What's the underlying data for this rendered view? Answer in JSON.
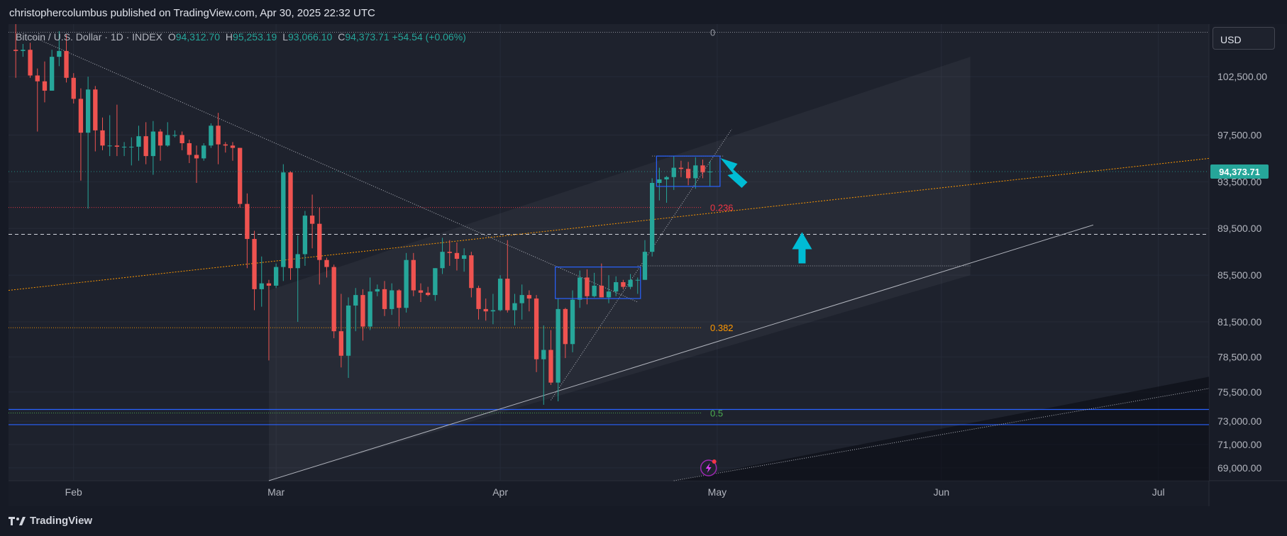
{
  "header": {
    "publisher_line": "christophercolumbus published on TradingView.com, Apr 30, 2025 22:32 UTC"
  },
  "legend": {
    "symbol": "Bitcoin / U.S. Dollar · 1D · INDEX",
    "open_label": "O",
    "open": "94,312.70",
    "high_label": "H",
    "high": "95,253.19",
    "low_label": "L",
    "low": "93,066.10",
    "close_label": "C",
    "close": "94,373.71",
    "change": "+54.54 (+0.06%)"
  },
  "currency_button": "USD",
  "last_price_badge": "94,373.71",
  "footer": {
    "brand": "TradingView"
  },
  "colors": {
    "background": "#1e222d",
    "up": "#26a69a",
    "down": "#ef5350",
    "accent": "#00bcd4",
    "fib_0236": "#f23645",
    "fib_0382": "#ff9800",
    "fib_05": "#4caf50",
    "box": "#2962ff"
  },
  "chart_data": {
    "type": "candlestick",
    "symbol": "BTCUSD",
    "interval": "1D",
    "ylim": [
      67900,
      107000
    ],
    "y_ticks": [
      {
        "value": 102500,
        "label": "102,500.00"
      },
      {
        "value": 97500,
        "label": "97,500.00"
      },
      {
        "value": 93500,
        "label": "93,500.00"
      },
      {
        "value": 89500,
        "label": "89,500.00"
      },
      {
        "value": 85500,
        "label": "85,500.00"
      },
      {
        "value": 81500,
        "label": "81,500.00"
      },
      {
        "value": 78500,
        "label": "78,500.00"
      },
      {
        "value": 75500,
        "label": "75,500.00"
      },
      {
        "value": 73000,
        "label": "73,000.00"
      },
      {
        "value": 71000,
        "label": "71,000.00"
      },
      {
        "value": 69000,
        "label": "69,000.00"
      }
    ],
    "x_ticks": [
      {
        "date": "2025-02-01",
        "label": "Feb"
      },
      {
        "date": "2025-03-01",
        "label": "Mar"
      },
      {
        "date": "2025-04-01",
        "label": "Apr"
      },
      {
        "date": "2025-05-01",
        "label": "May"
      },
      {
        "date": "2025-06-01",
        "label": "Jun"
      },
      {
        "date": "2025-07-01",
        "label": "Jul"
      }
    ],
    "x_range": [
      "2025-01-23",
      "2025-07-08"
    ],
    "candles": [
      {
        "d": "2025-01-24",
        "o": 104800,
        "h": 107000,
        "l": 102400,
        "c": 104700
      },
      {
        "d": "2025-01-25",
        "o": 104700,
        "h": 105300,
        "l": 104200,
        "c": 104800
      },
      {
        "d": "2025-01-26",
        "o": 104800,
        "h": 105400,
        "l": 102400,
        "c": 102600
      },
      {
        "d": "2025-01-27",
        "o": 102600,
        "h": 103200,
        "l": 97800,
        "c": 102100
      },
      {
        "d": "2025-01-28",
        "o": 102100,
        "h": 103800,
        "l": 100300,
        "c": 101300
      },
      {
        "d": "2025-01-29",
        "o": 101300,
        "h": 104800,
        "l": 101300,
        "c": 104200
      },
      {
        "d": "2025-01-30",
        "o": 104200,
        "h": 106400,
        "l": 103400,
        "c": 104700
      },
      {
        "d": "2025-01-31",
        "o": 104700,
        "h": 106100,
        "l": 102000,
        "c": 102400
      },
      {
        "d": "2025-02-01",
        "o": 102400,
        "h": 102800,
        "l": 100200,
        "c": 100600
      },
      {
        "d": "2025-02-02",
        "o": 100600,
        "h": 101500,
        "l": 93600,
        "c": 97700
      },
      {
        "d": "2025-02-03",
        "o": 97700,
        "h": 102500,
        "l": 91200,
        "c": 101400
      },
      {
        "d": "2025-02-04",
        "o": 101400,
        "h": 101700,
        "l": 96100,
        "c": 97900
      },
      {
        "d": "2025-02-05",
        "o": 97900,
        "h": 99000,
        "l": 96200,
        "c": 96600
      },
      {
        "d": "2025-02-06",
        "o": 96600,
        "h": 99200,
        "l": 95700,
        "c": 96600
      },
      {
        "d": "2025-02-07",
        "o": 96600,
        "h": 100100,
        "l": 95700,
        "c": 96500
      },
      {
        "d": "2025-02-08",
        "o": 96500,
        "h": 96900,
        "l": 95700,
        "c": 96500
      },
      {
        "d": "2025-02-09",
        "o": 96500,
        "h": 97300,
        "l": 94900,
        "c": 96500
      },
      {
        "d": "2025-02-10",
        "o": 96500,
        "h": 98300,
        "l": 95300,
        "c": 97400
      },
      {
        "d": "2025-02-11",
        "o": 97400,
        "h": 98600,
        "l": 95000,
        "c": 95700
      },
      {
        "d": "2025-02-12",
        "o": 95700,
        "h": 98700,
        "l": 94100,
        "c": 97800
      },
      {
        "d": "2025-02-13",
        "o": 97800,
        "h": 98000,
        "l": 95300,
        "c": 96600
      },
      {
        "d": "2025-02-14",
        "o": 96600,
        "h": 98600,
        "l": 96500,
        "c": 97500
      },
      {
        "d": "2025-02-15",
        "o": 97500,
        "h": 97900,
        "l": 97300,
        "c": 97500
      },
      {
        "d": "2025-02-16",
        "o": 97500,
        "h": 97800,
        "l": 96200,
        "c": 96800
      },
      {
        "d": "2025-02-17",
        "o": 96800,
        "h": 97100,
        "l": 95100,
        "c": 95800
      },
      {
        "d": "2025-02-18",
        "o": 95800,
        "h": 96600,
        "l": 93400,
        "c": 95500
      },
      {
        "d": "2025-02-19",
        "o": 95500,
        "h": 96800,
        "l": 95300,
        "c": 96600
      },
      {
        "d": "2025-02-20",
        "o": 96600,
        "h": 98500,
        "l": 96400,
        "c": 98300
      },
      {
        "d": "2025-02-21",
        "o": 98300,
        "h": 99400,
        "l": 95000,
        "c": 96700
      },
      {
        "d": "2025-02-22",
        "o": 96700,
        "h": 96900,
        "l": 96000,
        "c": 96600
      },
      {
        "d": "2025-02-23",
        "o": 96600,
        "h": 96900,
        "l": 95300,
        "c": 96400
      },
      {
        "d": "2025-02-24",
        "o": 96400,
        "h": 96400,
        "l": 91300,
        "c": 91600
      },
      {
        "d": "2025-02-25",
        "o": 91600,
        "h": 92500,
        "l": 86100,
        "c": 88600
      },
      {
        "d": "2025-02-26",
        "o": 88600,
        "h": 89300,
        "l": 82500,
        "c": 84300
      },
      {
        "d": "2025-02-27",
        "o": 84300,
        "h": 87100,
        "l": 82800,
        "c": 84800
      },
      {
        "d": "2025-02-28",
        "o": 84800,
        "h": 85100,
        "l": 78200,
        "c": 84600
      },
      {
        "d": "2025-03-01",
        "o": 84600,
        "h": 86500,
        "l": 84400,
        "c": 86200
      },
      {
        "d": "2025-03-02",
        "o": 86200,
        "h": 95000,
        "l": 85000,
        "c": 94300
      },
      {
        "d": "2025-03-03",
        "o": 94300,
        "h": 94400,
        "l": 85100,
        "c": 86100
      },
      {
        "d": "2025-03-04",
        "o": 86100,
        "h": 88900,
        "l": 81500,
        "c": 87300
      },
      {
        "d": "2025-03-05",
        "o": 87300,
        "h": 91000,
        "l": 86300,
        "c": 90600
      },
      {
        "d": "2025-03-06",
        "o": 90600,
        "h": 92400,
        "l": 87800,
        "c": 89900
      },
      {
        "d": "2025-03-07",
        "o": 89900,
        "h": 91300,
        "l": 84700,
        "c": 86800
      },
      {
        "d": "2025-03-08",
        "o": 86800,
        "h": 87000,
        "l": 85300,
        "c": 86200
      },
      {
        "d": "2025-03-09",
        "o": 86200,
        "h": 86400,
        "l": 80100,
        "c": 80700
      },
      {
        "d": "2025-03-10",
        "o": 80700,
        "h": 83900,
        "l": 77600,
        "c": 78600
      },
      {
        "d": "2025-03-11",
        "o": 78600,
        "h": 83600,
        "l": 76700,
        "c": 82900
      },
      {
        "d": "2025-03-12",
        "o": 82900,
        "h": 84400,
        "l": 80700,
        "c": 83800
      },
      {
        "d": "2025-03-13",
        "o": 83800,
        "h": 84300,
        "l": 79900,
        "c": 81100
      },
      {
        "d": "2025-03-14",
        "o": 81100,
        "h": 85300,
        "l": 80800,
        "c": 84100
      },
      {
        "d": "2025-03-15",
        "o": 84100,
        "h": 84700,
        "l": 83700,
        "c": 84300
      },
      {
        "d": "2025-03-16",
        "o": 84300,
        "h": 85000,
        "l": 82000,
        "c": 82600
      },
      {
        "d": "2025-03-17",
        "o": 82600,
        "h": 84800,
        "l": 82100,
        "c": 84200
      },
      {
        "d": "2025-03-18",
        "o": 84200,
        "h": 84300,
        "l": 81100,
        "c": 82700
      },
      {
        "d": "2025-03-19",
        "o": 82700,
        "h": 87400,
        "l": 82300,
        "c": 86800
      },
      {
        "d": "2025-03-20",
        "o": 86800,
        "h": 87400,
        "l": 83700,
        "c": 84200
      },
      {
        "d": "2025-03-21",
        "o": 84200,
        "h": 84800,
        "l": 83200,
        "c": 84000
      },
      {
        "d": "2025-03-22",
        "o": 84000,
        "h": 84500,
        "l": 83700,
        "c": 83800
      },
      {
        "d": "2025-03-23",
        "o": 83800,
        "h": 86100,
        "l": 83300,
        "c": 86100
      },
      {
        "d": "2025-03-24",
        "o": 86100,
        "h": 88700,
        "l": 85600,
        "c": 87500
      },
      {
        "d": "2025-03-25",
        "o": 87500,
        "h": 88500,
        "l": 86300,
        "c": 87400
      },
      {
        "d": "2025-03-26",
        "o": 87400,
        "h": 88300,
        "l": 85900,
        "c": 86900
      },
      {
        "d": "2025-03-27",
        "o": 86900,
        "h": 87800,
        "l": 85800,
        "c": 87200
      },
      {
        "d": "2025-03-28",
        "o": 87200,
        "h": 87500,
        "l": 83600,
        "c": 84400
      },
      {
        "d": "2025-03-29",
        "o": 84400,
        "h": 84600,
        "l": 81700,
        "c": 82600
      },
      {
        "d": "2025-03-30",
        "o": 82600,
        "h": 83500,
        "l": 81600,
        "c": 82400
      },
      {
        "d": "2025-03-31",
        "o": 82400,
        "h": 83900,
        "l": 81300,
        "c": 82500
      },
      {
        "d": "2025-04-01",
        "o": 82500,
        "h": 85500,
        "l": 82400,
        "c": 85200
      },
      {
        "d": "2025-04-02",
        "o": 85200,
        "h": 88500,
        "l": 82300,
        "c": 82500
      },
      {
        "d": "2025-04-03",
        "o": 82500,
        "h": 83900,
        "l": 81200,
        "c": 83100
      },
      {
        "d": "2025-04-04",
        "o": 83100,
        "h": 84700,
        "l": 81700,
        "c": 83800
      },
      {
        "d": "2025-04-05",
        "o": 83800,
        "h": 84200,
        "l": 82400,
        "c": 83500
      },
      {
        "d": "2025-04-06",
        "o": 83500,
        "h": 83800,
        "l": 77200,
        "c": 78300
      },
      {
        "d": "2025-04-07",
        "o": 78300,
        "h": 81200,
        "l": 74400,
        "c": 79100
      },
      {
        "d": "2025-04-08",
        "o": 79100,
        "h": 80800,
        "l": 76100,
        "c": 76300
      },
      {
        "d": "2025-04-09",
        "o": 76300,
        "h": 83500,
        "l": 74700,
        "c": 82600
      },
      {
        "d": "2025-04-10",
        "o": 82600,
        "h": 82700,
        "l": 78400,
        "c": 79600
      },
      {
        "d": "2025-04-11",
        "o": 79600,
        "h": 84200,
        "l": 78900,
        "c": 83400
      },
      {
        "d": "2025-04-12",
        "o": 83400,
        "h": 85900,
        "l": 82700,
        "c": 85300
      },
      {
        "d": "2025-04-13",
        "o": 85300,
        "h": 86000,
        "l": 83000,
        "c": 83700
      },
      {
        "d": "2025-04-14",
        "o": 83700,
        "h": 85700,
        "l": 83600,
        "c": 84600
      },
      {
        "d": "2025-04-15",
        "o": 84600,
        "h": 86500,
        "l": 83600,
        "c": 83600
      },
      {
        "d": "2025-04-16",
        "o": 83600,
        "h": 85500,
        "l": 83100,
        "c": 84100
      },
      {
        "d": "2025-04-17",
        "o": 84100,
        "h": 85400,
        "l": 83700,
        "c": 84900
      },
      {
        "d": "2025-04-18",
        "o": 84900,
        "h": 85100,
        "l": 84300,
        "c": 84500
      },
      {
        "d": "2025-04-19",
        "o": 84500,
        "h": 85600,
        "l": 84300,
        "c": 85100
      },
      {
        "d": "2025-04-20",
        "o": 85100,
        "h": 85300,
        "l": 83900,
        "c": 85100
      },
      {
        "d": "2025-04-21",
        "o": 85100,
        "h": 88500,
        "l": 85100,
        "c": 87500
      },
      {
        "d": "2025-04-22",
        "o": 87500,
        "h": 93800,
        "l": 87100,
        "c": 93400
      },
      {
        "d": "2025-04-23",
        "o": 93400,
        "h": 94700,
        "l": 91900,
        "c": 93700
      },
      {
        "d": "2025-04-24",
        "o": 93700,
        "h": 94000,
        "l": 91700,
        "c": 93900
      },
      {
        "d": "2025-04-25",
        "o": 93900,
        "h": 95700,
        "l": 92800,
        "c": 94700
      },
      {
        "d": "2025-04-26",
        "o": 94700,
        "h": 95300,
        "l": 93900,
        "c": 94600
      },
      {
        "d": "2025-04-27",
        "o": 94600,
        "h": 95200,
        "l": 93200,
        "c": 93800
      },
      {
        "d": "2025-04-28",
        "o": 93800,
        "h": 95600,
        "l": 92900,
        "c": 94900
      },
      {
        "d": "2025-04-29",
        "o": 94900,
        "h": 95400,
        "l": 93800,
        "c": 94300
      },
      {
        "d": "2025-04-30",
        "o": 94312.7,
        "h": 95253.19,
        "l": 93066.1,
        "c": 94373.71
      }
    ],
    "fib_levels": [
      {
        "label": "0",
        "value": 106300
      },
      {
        "label": "0.236",
        "value": 91300
      },
      {
        "label": "0.382",
        "value": 81000
      },
      {
        "label": "0.5",
        "value": 73700
      }
    ],
    "horizontal_lines": [
      {
        "value": 89000,
        "style": "dashed"
      },
      {
        "value": 74000,
        "style": "solid"
      },
      {
        "value": 72700,
        "style": "solid"
      }
    ],
    "boxes": [
      {
        "from": "2025-04-09",
        "to": "2025-04-20",
        "top": 86200,
        "bottom": 83500
      },
      {
        "from": "2025-04-23",
        "to": "2025-05-01",
        "top": 95700,
        "bottom": 93100
      }
    ],
    "last_price": 94373.71
  }
}
